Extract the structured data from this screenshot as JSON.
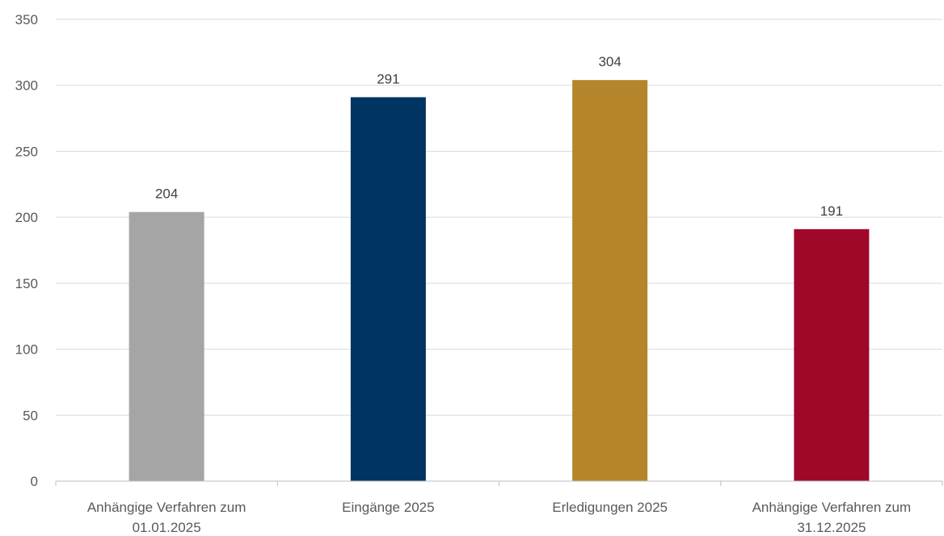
{
  "chart_data": {
    "type": "bar",
    "categories": [
      [
        "Anhängige Verfahren zum",
        "01.01.2025"
      ],
      [
        "Eingänge 2025"
      ],
      [
        "Erledigungen 2025"
      ],
      [
        "Anhängige Verfahren zum",
        "31.12.2025"
      ]
    ],
    "values": [
      204,
      291,
      304,
      191
    ],
    "colors": [
      "#a5a5a5",
      "#003462",
      "#b5852b",
      "#a0082a"
    ],
    "ylim": [
      0,
      350
    ],
    "yticks": [
      0,
      50,
      100,
      150,
      200,
      250,
      300,
      350
    ],
    "grid": true,
    "legend": "none",
    "title": "",
    "xlabel": "",
    "ylabel": ""
  }
}
